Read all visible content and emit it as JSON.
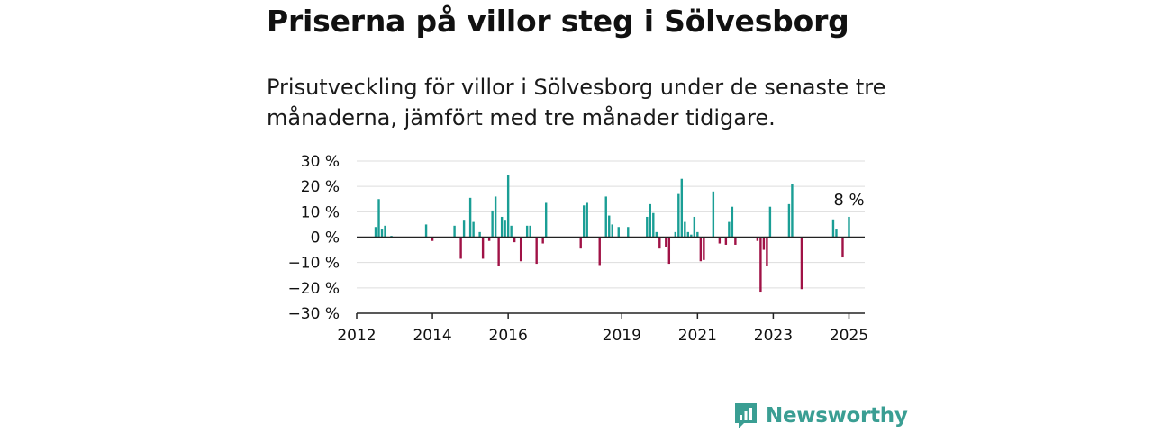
{
  "title": "Priserna på villor steg i Sölvesborg",
  "subtitle": "Prisutveckling för villor i Sölvesborg under de senaste tre månaderna, jämfört med tre månader tidigare.",
  "brand": {
    "name": "Newsworthy",
    "icon": "newsworthy-logo-icon"
  },
  "colors": {
    "positive": "#1a9e95",
    "negative": "#a01246",
    "grid": "#dddddd",
    "axis": "#222222",
    "brand": "#3a9e93"
  },
  "chart_data": {
    "type": "bar",
    "x_start": "2012-01",
    "x_end": "2025-06",
    "ylim": [
      -30,
      30
    ],
    "y_ticks": [
      {
        "value": 30,
        "label": "30 %"
      },
      {
        "value": 20,
        "label": "20 %"
      },
      {
        "value": 10,
        "label": "10 %"
      },
      {
        "value": 0,
        "label": "0 %"
      },
      {
        "value": -10,
        "label": "−10 %"
      },
      {
        "value": -20,
        "label": "−20 %"
      },
      {
        "value": -30,
        "label": "−30 %"
      }
    ],
    "x_ticks": [
      {
        "value": "2012-01",
        "label": "2012"
      },
      {
        "value": "2014-01",
        "label": "2014"
      },
      {
        "value": "2016-01",
        "label": "2016"
      },
      {
        "value": "2019-01",
        "label": "2019"
      },
      {
        "value": "2021-01",
        "label": "2021"
      },
      {
        "value": "2023-01",
        "label": "2023"
      },
      {
        "value": "2025-01",
        "label": "2025"
      }
    ],
    "annotation": {
      "x": "2025-01",
      "label": "8 %"
    },
    "grid": true,
    "legend": "none",
    "bars": [
      {
        "x": "2012-07",
        "y": 4
      },
      {
        "x": "2012-08",
        "y": 15
      },
      {
        "x": "2012-09",
        "y": 3
      },
      {
        "x": "2012-10",
        "y": 4.5
      },
      {
        "x": "2012-12",
        "y": 0.5
      },
      {
        "x": "2013-11",
        "y": 5
      },
      {
        "x": "2014-01",
        "y": -1.5
      },
      {
        "x": "2014-08",
        "y": 4.5
      },
      {
        "x": "2014-10",
        "y": -8.5
      },
      {
        "x": "2014-11",
        "y": 6.5
      },
      {
        "x": "2015-01",
        "y": 15.5
      },
      {
        "x": "2015-02",
        "y": 6
      },
      {
        "x": "2015-04",
        "y": 2
      },
      {
        "x": "2015-05",
        "y": -8.5
      },
      {
        "x": "2015-07",
        "y": -1.5
      },
      {
        "x": "2015-08",
        "y": 10.5
      },
      {
        "x": "2015-09",
        "y": 16
      },
      {
        "x": "2015-10",
        "y": -11.5
      },
      {
        "x": "2015-11",
        "y": 8
      },
      {
        "x": "2015-12",
        "y": 6.5
      },
      {
        "x": "2016-01",
        "y": 24.5
      },
      {
        "x": "2016-02",
        "y": 4.5
      },
      {
        "x": "2016-03",
        "y": -2
      },
      {
        "x": "2016-05",
        "y": -9.5
      },
      {
        "x": "2016-07",
        "y": 4.5
      },
      {
        "x": "2016-08",
        "y": 4.5
      },
      {
        "x": "2016-10",
        "y": -10.5
      },
      {
        "x": "2016-12",
        "y": -2.5
      },
      {
        "x": "2017-01",
        "y": 13.5
      },
      {
        "x": "2017-12",
        "y": -4.5
      },
      {
        "x": "2018-01",
        "y": 12.5
      },
      {
        "x": "2018-02",
        "y": 13.5
      },
      {
        "x": "2018-06",
        "y": -11
      },
      {
        "x": "2018-08",
        "y": 16
      },
      {
        "x": "2018-09",
        "y": 8.5
      },
      {
        "x": "2018-10",
        "y": 5
      },
      {
        "x": "2018-12",
        "y": 4
      },
      {
        "x": "2019-03",
        "y": 4
      },
      {
        "x": "2019-09",
        "y": 8
      },
      {
        "x": "2019-10",
        "y": 13
      },
      {
        "x": "2019-11",
        "y": 9.5
      },
      {
        "x": "2019-12",
        "y": 2
      },
      {
        "x": "2020-01",
        "y": -4.5
      },
      {
        "x": "2020-03",
        "y": -4
      },
      {
        "x": "2020-04",
        "y": -10.5
      },
      {
        "x": "2020-06",
        "y": 2
      },
      {
        "x": "2020-07",
        "y": 17
      },
      {
        "x": "2020-08",
        "y": 23
      },
      {
        "x": "2020-09",
        "y": 6
      },
      {
        "x": "2020-10",
        "y": 2
      },
      {
        "x": "2020-11",
        "y": 1
      },
      {
        "x": "2020-12",
        "y": 8
      },
      {
        "x": "2021-01",
        "y": 2
      },
      {
        "x": "2021-02",
        "y": -9.5
      },
      {
        "x": "2021-03",
        "y": -9
      },
      {
        "x": "2021-06",
        "y": 18
      },
      {
        "x": "2021-08",
        "y": -2.5
      },
      {
        "x": "2021-10",
        "y": -3
      },
      {
        "x": "2021-11",
        "y": 6
      },
      {
        "x": "2021-12",
        "y": 12
      },
      {
        "x": "2022-01",
        "y": -3
      },
      {
        "x": "2022-08",
        "y": -1.5
      },
      {
        "x": "2022-09",
        "y": -21.5
      },
      {
        "x": "2022-10",
        "y": -5
      },
      {
        "x": "2022-11",
        "y": -11.5
      },
      {
        "x": "2022-12",
        "y": 12
      },
      {
        "x": "2023-06",
        "y": 13
      },
      {
        "x": "2023-07",
        "y": 21
      },
      {
        "x": "2023-10",
        "y": -20.5
      },
      {
        "x": "2024-08",
        "y": 7
      },
      {
        "x": "2024-09",
        "y": 3
      },
      {
        "x": "2024-11",
        "y": -8
      },
      {
        "x": "2025-01",
        "y": 8
      }
    ]
  }
}
